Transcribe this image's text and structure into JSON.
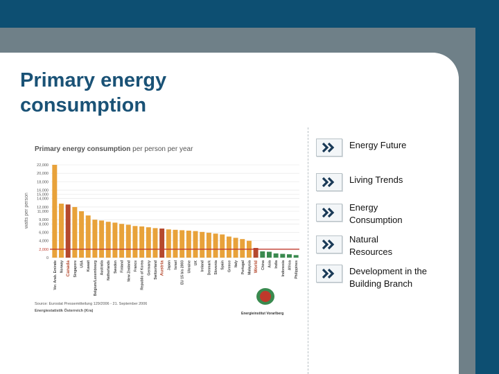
{
  "page": {
    "title": "Primary energy consumption"
  },
  "nav": {
    "items": [
      {
        "label": "Energy Future"
      },
      {
        "label": "Living Trends"
      },
      {
        "label": "Energy Consumption"
      },
      {
        "label": "Natural Resources"
      },
      {
        "label": "Development in the Building Branch"
      }
    ]
  },
  "colors": {
    "frame": "#0d4f72",
    "grey": "#6f8088",
    "title": "#1a5276",
    "bar": "#e8a23a",
    "highlight": "#b5492e",
    "green": "#3a8a4f",
    "line": "#c0392b"
  },
  "chart_data": {
    "type": "bar",
    "title": "Primary energy consumption",
    "subtitle": "per person per year",
    "ylabel": "watts per person",
    "ylim": [
      0,
      22000
    ],
    "yticks": [
      0,
      2000,
      4000,
      6000,
      8000,
      9000,
      11000,
      12000,
      14000,
      15000,
      16000,
      18000,
      20000,
      22000
    ],
    "ytick_labels": [
      "0",
      "2,000",
      "4,000",
      "6,000",
      "8,000",
      "9,000",
      "11,000",
      "12,000",
      "14,000",
      "15,000",
      "16,000",
      "18,000",
      "20,000",
      "22,000"
    ],
    "reference_line": 2000,
    "source": "Source: Eurostat Pressemitteilung 129/2006 - 21. September 2006",
    "source2": "Energiestatistik Österreich (Kra)",
    "logo_text": "Energieinstitut Vorarlberg",
    "categories": [
      "Ver. Arab. Emirate",
      "Norway",
      "Canada",
      "Singapore",
      "USA",
      "Kuwait",
      "Belgium/Luxembourg",
      "Australia",
      "Netherlands",
      "Sweden",
      "Finland",
      "New Zealand",
      "France",
      "Republic of Korea",
      "Germany",
      "Switzerland",
      "Austria",
      "Japan",
      "Israel",
      "EU 15 bis 2003",
      "Ukraine",
      "UK",
      "Ireland",
      "Denmark",
      "Slovenia",
      "Spain",
      "Greece",
      "Italy",
      "Portugal",
      "Malaysia",
      "World",
      "China",
      "Asia",
      "India",
      "Indonesia",
      "Africa",
      "Philippines"
    ],
    "values": [
      22000,
      12800,
      12600,
      12000,
      11000,
      10000,
      9000,
      8800,
      8500,
      8300,
      8000,
      7800,
      7500,
      7400,
      7200,
      7000,
      6900,
      6700,
      6600,
      6500,
      6400,
      6300,
      6100,
      5900,
      5700,
      5500,
      5000,
      4700,
      4400,
      4000,
      2300,
      1500,
      1400,
      1000,
      900,
      800,
      600
    ],
    "highlight": [
      "Canada",
      "Austria",
      "World"
    ],
    "green_categories": [
      "China",
      "Asia",
      "India",
      "Indonesia",
      "Africa",
      "Philippines"
    ]
  }
}
